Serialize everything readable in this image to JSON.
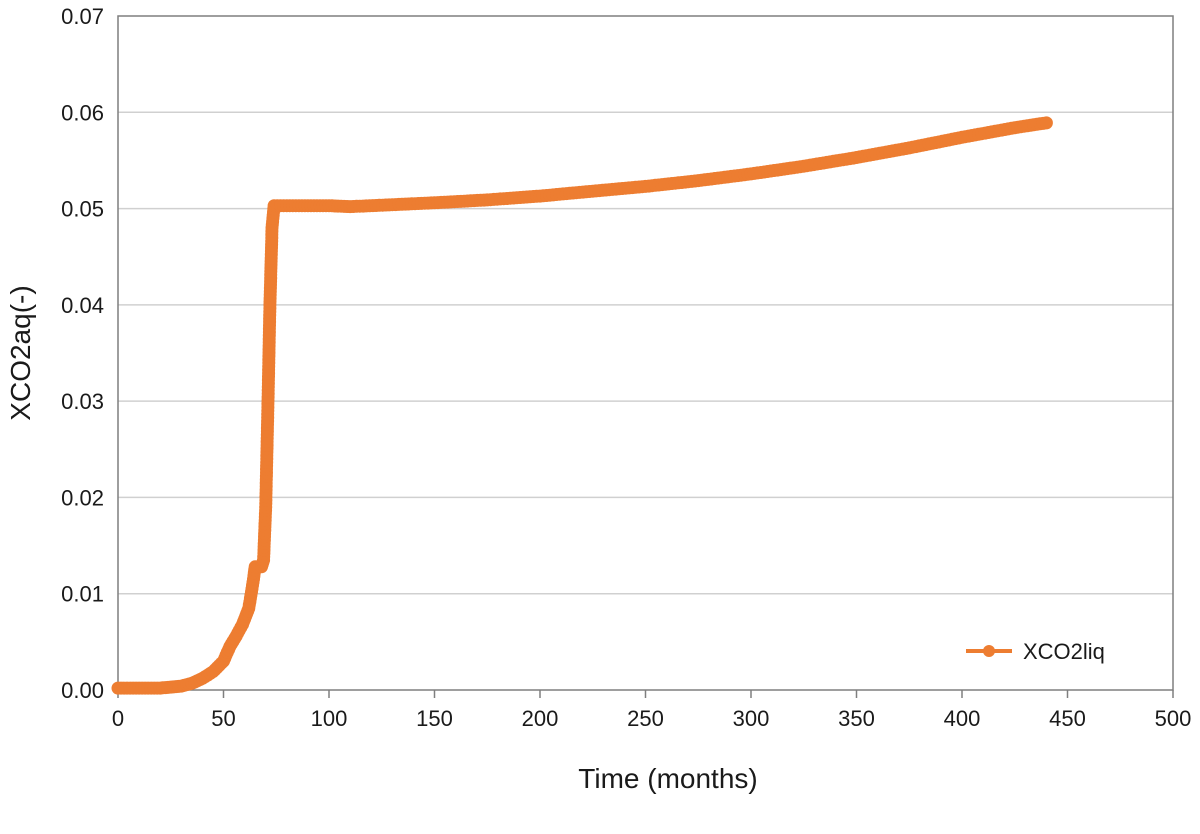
{
  "chart_data": {
    "type": "line",
    "title": "",
    "xlabel": "Time (months)",
    "ylabel": "XCO2aq(-)",
    "xlim": [
      0,
      500
    ],
    "ylim": [
      0,
      0.07
    ],
    "xticks": [
      0,
      50,
      100,
      150,
      200,
      250,
      300,
      350,
      400,
      450,
      500
    ],
    "yticks": [
      0.0,
      0.01,
      0.02,
      0.03,
      0.04,
      0.05,
      0.06,
      0.07
    ],
    "xtick_labels": [
      "0",
      "50",
      "100",
      "150",
      "200",
      "250",
      "300",
      "350",
      "400",
      "450",
      "500"
    ],
    "ytick_labels": [
      "0.00",
      "0.01",
      "0.02",
      "0.03",
      "0.04",
      "0.05",
      "0.06",
      "0.07"
    ],
    "grid": "horizontal",
    "legend_position": "bottom-right",
    "series": [
      {
        "name": "XCO2liq",
        "color": "#ed7d31",
        "marker": "circle",
        "points": [
          [
            0,
            0.0002
          ],
          [
            10,
            0.0002
          ],
          [
            20,
            0.0002
          ],
          [
            25,
            0.0003
          ],
          [
            30,
            0.0004
          ],
          [
            35,
            0.0007
          ],
          [
            40,
            0.0012
          ],
          [
            45,
            0.0019
          ],
          [
            50,
            0.003
          ],
          [
            53,
            0.0045
          ],
          [
            56,
            0.0056
          ],
          [
            59,
            0.0068
          ],
          [
            62,
            0.0085
          ],
          [
            64,
            0.0112
          ],
          [
            65,
            0.0128
          ],
          [
            68,
            0.0128
          ],
          [
            69,
            0.0135
          ],
          [
            70,
            0.019
          ],
          [
            71,
            0.029
          ],
          [
            72,
            0.04
          ],
          [
            73,
            0.048
          ],
          [
            74,
            0.0503
          ],
          [
            80,
            0.0503
          ],
          [
            90,
            0.0503
          ],
          [
            100,
            0.0503
          ],
          [
            110,
            0.0502
          ],
          [
            130,
            0.0504
          ],
          [
            150,
            0.0506
          ],
          [
            175,
            0.0509
          ],
          [
            200,
            0.0513
          ],
          [
            225,
            0.0518
          ],
          [
            250,
            0.0523
          ],
          [
            275,
            0.0529
          ],
          [
            300,
            0.0536
          ],
          [
            325,
            0.0544
          ],
          [
            350,
            0.0553
          ],
          [
            375,
            0.0563
          ],
          [
            400,
            0.0574
          ],
          [
            425,
            0.0584
          ],
          [
            440,
            0.0589
          ]
        ]
      }
    ]
  }
}
